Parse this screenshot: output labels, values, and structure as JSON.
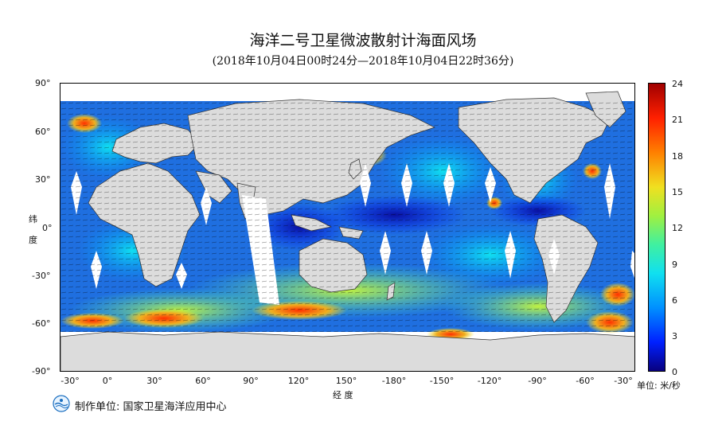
{
  "title": "海洋二号卫星微波散射计海面风场",
  "subtitle": "(2018年10月04日00时24分—2018年10月04日22时36分)",
  "y_axis": {
    "title": [
      "纬",
      "度"
    ],
    "ticks": [
      "90°",
      "60°",
      "30°",
      "0°",
      "-30°",
      "-60°",
      "-90°"
    ]
  },
  "x_axis": {
    "title": "经  度",
    "ticks": [
      "-30°",
      "0°",
      "30°",
      "60°",
      "90°",
      "120°",
      "150°",
      "-180°",
      "-150°",
      "-120°",
      "-90°",
      "-60°",
      "-30°"
    ]
  },
  "colorbar": {
    "ticks": [
      "24",
      "21",
      "18",
      "15",
      "12",
      "9",
      "6",
      "3",
      "0"
    ],
    "unit": "单位: 米/秒",
    "colors": [
      "#08007f",
      "#0020ff",
      "#0090ff",
      "#10e0f0",
      "#40f0a0",
      "#a0f040",
      "#f0e020",
      "#ff8000",
      "#ff2000",
      "#a00000"
    ]
  },
  "footer": "制作单位: 国家卫星海洋应用中心",
  "colors": {
    "land": "#dcdcdc",
    "ocean_base": "#1e64d8"
  }
}
